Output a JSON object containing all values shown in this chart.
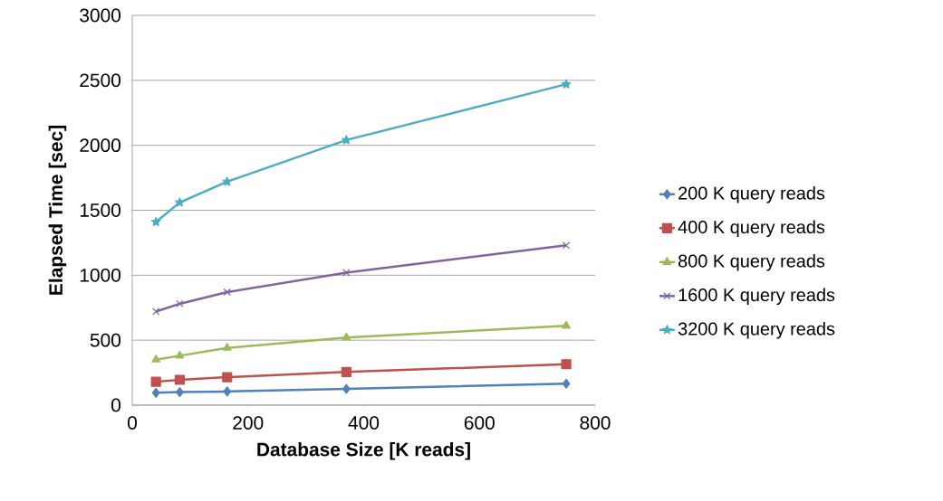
{
  "chart_data": {
    "type": "line",
    "xlabel": "Database Size [K reads]",
    "ylabel": "Elapsed Time [sec]",
    "x": [
      41,
      82,
      164,
      370,
      750
    ],
    "series": [
      {
        "name": "200 K query reads",
        "color": "#4f81bd",
        "marker": "diamond",
        "values": [
          95,
          100,
          105,
          125,
          165
        ]
      },
      {
        "name": "400 K query reads",
        "color": "#c0504d",
        "marker": "square",
        "values": [
          180,
          195,
          215,
          255,
          315
        ]
      },
      {
        "name": "800 K query reads",
        "color": "#9bbb59",
        "marker": "triangle",
        "values": [
          350,
          380,
          440,
          520,
          610
        ]
      },
      {
        "name": "1600 K query reads",
        "color": "#8064a2",
        "marker": "cross",
        "values": [
          720,
          780,
          870,
          1020,
          1230
        ]
      },
      {
        "name": "3200 K query reads",
        "color": "#4bacc6",
        "marker": "star",
        "values": [
          1410,
          1560,
          1720,
          2040,
          2470
        ]
      }
    ],
    "xlim": [
      0,
      800
    ],
    "xticks": [
      0,
      200,
      400,
      600,
      800
    ],
    "ylim": [
      0,
      3000
    ],
    "yticks": [
      0,
      500,
      1000,
      1500,
      2000,
      2500,
      3000
    ],
    "grid": "y",
    "legend": "right"
  }
}
